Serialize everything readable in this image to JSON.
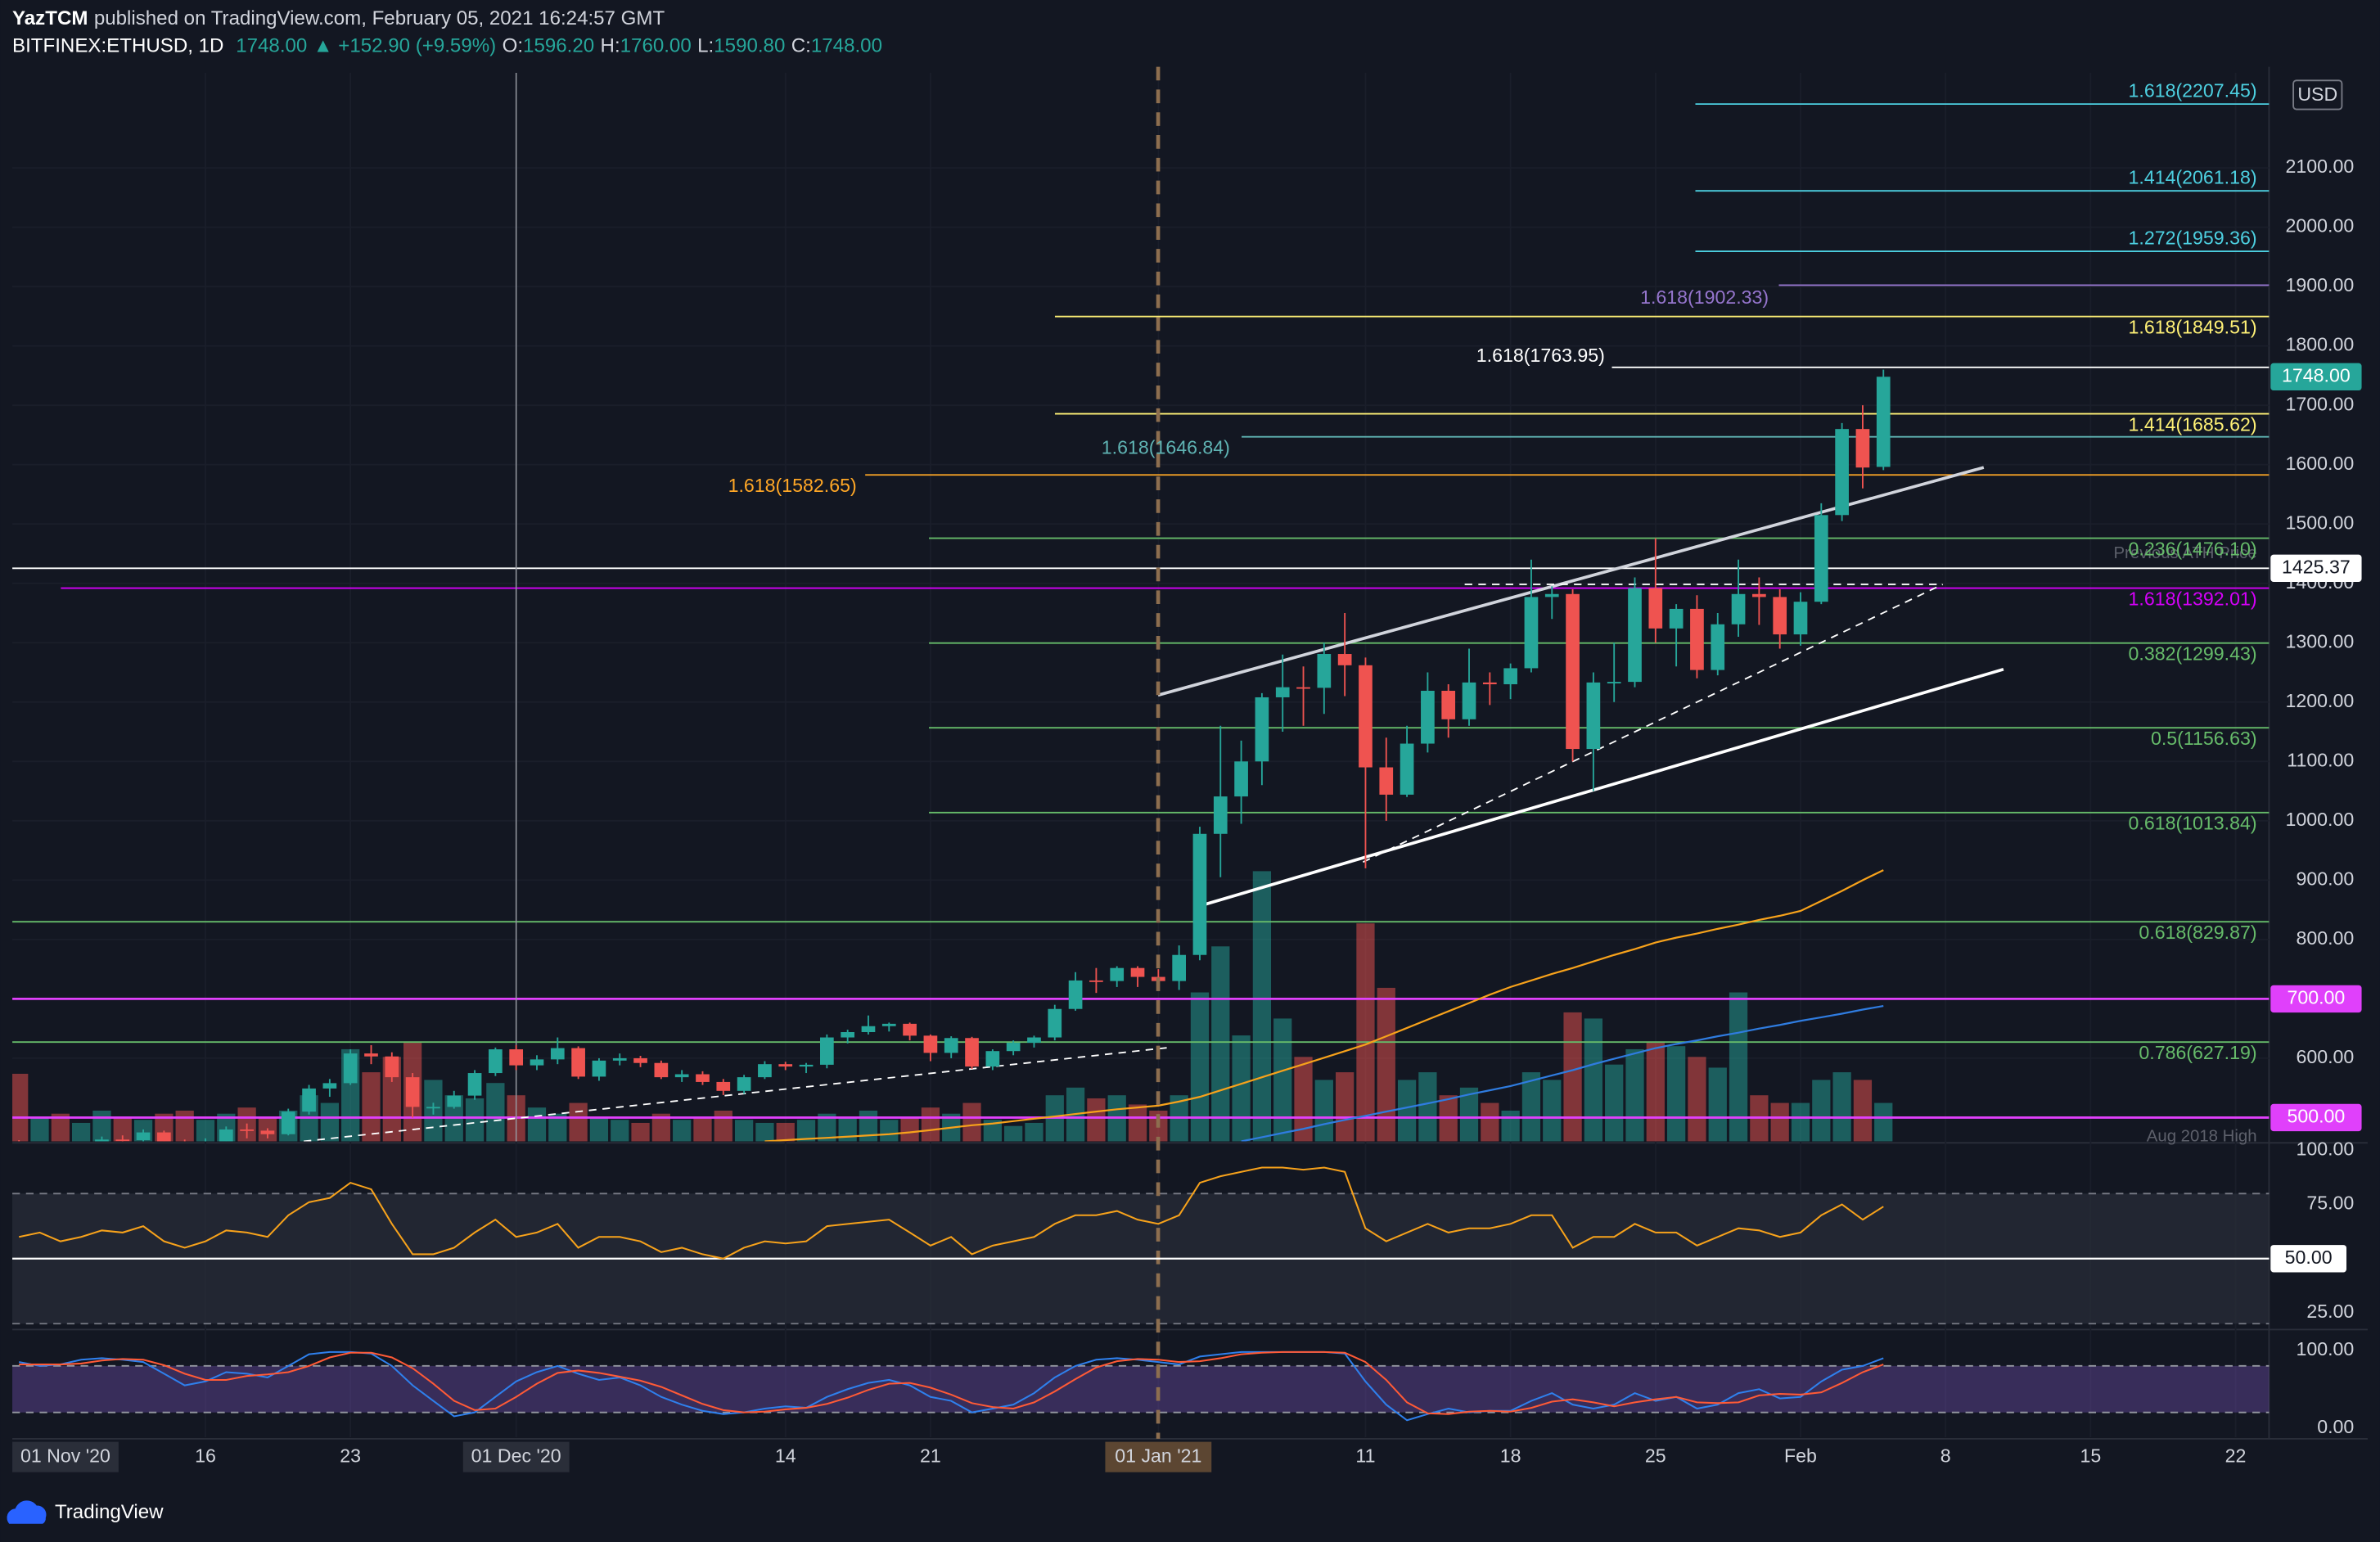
{
  "header": {
    "author": "YazTCM",
    "published": "published on TradingView.com, February 05, 2021 16:24:57 GMT",
    "symbol": "BITFINEX:ETHUSD, 1D",
    "last": "1748.00",
    "change": "▲ +152.90 (+9.59%)",
    "ohlc": [
      {
        "label": "O:",
        "value": "1596.20"
      },
      {
        "label": "H:",
        "value": "1760.00"
      },
      {
        "label": "L:",
        "value": "1590.80"
      },
      {
        "label": "C:",
        "value": "1748.00"
      }
    ]
  },
  "currency": "USD",
  "brand": "TradingView",
  "annotations": [
    "Previous ATH Price",
    "Aug 2018 High"
  ],
  "chart_data": {
    "type": "candlestick",
    "up_color": "#26a69a",
    "down_color": "#ef5350",
    "x": [
      "2020-11-07",
      "2020-11-08",
      "2020-11-09",
      "2020-11-10",
      "2020-11-11",
      "2020-11-12",
      "2020-11-13",
      "2020-11-14",
      "2020-11-15",
      "2020-11-16",
      "2020-11-17",
      "2020-11-18",
      "2020-11-19",
      "2020-11-20",
      "2020-11-21",
      "2020-11-22",
      "2020-11-23",
      "2020-11-24",
      "2020-11-25",
      "2020-11-26",
      "2020-11-27",
      "2020-11-28",
      "2020-11-29",
      "2020-11-30",
      "2020-12-01",
      "2020-12-02",
      "2020-12-03",
      "2020-12-04",
      "2020-12-05",
      "2020-12-06",
      "2020-12-07",
      "2020-12-08",
      "2020-12-09",
      "2020-12-10",
      "2020-12-11",
      "2020-12-12",
      "2020-12-13",
      "2020-12-14",
      "2020-12-15",
      "2020-12-16",
      "2020-12-17",
      "2020-12-18",
      "2020-12-19",
      "2020-12-20",
      "2020-12-21",
      "2020-12-22",
      "2020-12-23",
      "2020-12-24",
      "2020-12-25",
      "2020-12-26",
      "2020-12-27",
      "2020-12-28",
      "2020-12-29",
      "2020-12-30",
      "2020-12-31",
      "2021-01-01",
      "2021-01-02",
      "2021-01-03",
      "2021-01-04",
      "2021-01-05",
      "2021-01-06",
      "2021-01-07",
      "2021-01-08",
      "2021-01-09",
      "2021-01-10",
      "2021-01-11",
      "2021-01-12",
      "2021-01-13",
      "2021-01-14",
      "2021-01-15",
      "2021-01-16",
      "2021-01-17",
      "2021-01-18",
      "2021-01-19",
      "2021-01-20",
      "2021-01-21",
      "2021-01-22",
      "2021-01-23",
      "2021-01-24",
      "2021-01-25",
      "2021-01-26",
      "2021-01-27",
      "2021-01-28",
      "2021-01-29",
      "2021-01-30",
      "2021-01-31",
      "2021-02-01",
      "2021-02-02",
      "2021-02-03",
      "2021-02-04",
      "2021-02-05"
    ],
    "open": [
      455,
      435,
      454,
      444,
      451,
      463,
      462,
      475,
      460,
      448,
      460,
      480,
      478,
      472,
      510,
      549,
      558,
      608,
      603,
      568,
      518,
      518,
      537,
      575,
      615,
      588,
      598,
      617,
      569,
      596,
      600,
      592,
      568,
      573,
      560,
      545,
      568,
      590,
      586,
      589,
      635,
      644,
      654,
      658,
      638,
      609,
      634,
      586,
      612,
      626,
      635,
      683,
      731,
      730,
      752,
      737,
      730,
      774,
      978,
      1041,
      1100,
      1208,
      1225,
      1224,
      1281,
      1262,
      1090,
      1044,
      1130,
      1219,
      1171,
      1233,
      1230,
      1257,
      1377,
      1382,
      1121,
      1233,
      1234,
      1392,
      1324,
      1357,
      1254,
      1331,
      1382,
      1377,
      1314,
      1369,
      1515,
      1660,
      1596.2
    ],
    "high": [
      462,
      460,
      458,
      457,
      468,
      470,
      480,
      478,
      463,
      465,
      485,
      490,
      482,
      515,
      555,
      565,
      615,
      622,
      610,
      575,
      525,
      545,
      580,
      618,
      622,
      605,
      635,
      620,
      600,
      608,
      604,
      596,
      580,
      578,
      565,
      572,
      595,
      594,
      592,
      640,
      648,
      672,
      660,
      660,
      640,
      637,
      636,
      615,
      630,
      638,
      690,
      745,
      752,
      755,
      755,
      750,
      790,
      990,
      1160,
      1135,
      1215,
      1280,
      1260,
      1300,
      1350,
      1275,
      1140,
      1160,
      1250,
      1230,
      1290,
      1250,
      1265,
      1440,
      1395,
      1390,
      1250,
      1300,
      1410,
      1476,
      1365,
      1380,
      1350,
      1440,
      1410,
      1390,
      1385,
      1535,
      1670,
      1700,
      1760
    ],
    "low": [
      430,
      430,
      440,
      438,
      445,
      452,
      458,
      455,
      440,
      442,
      458,
      465,
      465,
      470,
      505,
      535,
      555,
      590,
      560,
      500,
      505,
      515,
      530,
      570,
      580,
      580,
      590,
      565,
      562,
      588,
      585,
      565,
      560,
      555,
      538,
      540,
      565,
      580,
      575,
      583,
      625,
      640,
      645,
      630,
      595,
      600,
      582,
      580,
      605,
      618,
      630,
      680,
      710,
      720,
      720,
      715,
      715,
      765,
      905,
      995,
      1060,
      1150,
      1160,
      1180,
      1210,
      920,
      1000,
      1040,
      1115,
      1140,
      1160,
      1195,
      1205,
      1250,
      1340,
      1100,
      1050,
      1200,
      1225,
      1300,
      1260,
      1240,
      1245,
      1310,
      1330,
      1290,
      1295,
      1365,
      1505,
      1560,
      1590.8
    ],
    "close": [
      435,
      454,
      444,
      451,
      463,
      462,
      475,
      460,
      448,
      460,
      480,
      478,
      472,
      510,
      549,
      558,
      608,
      603,
      568,
      518,
      518,
      537,
      575,
      615,
      588,
      598,
      617,
      569,
      596,
      600,
      592,
      568,
      573,
      560,
      545,
      568,
      590,
      586,
      589,
      635,
      644,
      654,
      658,
      638,
      609,
      634,
      586,
      612,
      626,
      635,
      683,
      731,
      730,
      752,
      737,
      730,
      774,
      978,
      1041,
      1100,
      1208,
      1225,
      1224,
      1281,
      1262,
      1090,
      1044,
      1130,
      1219,
      1171,
      1233,
      1230,
      1257,
      1377,
      1382,
      1121,
      1233,
      1234,
      1392,
      1324,
      1357,
      1254,
      1331,
      1382,
      1377,
      1314,
      1369,
      1515,
      1660,
      1595.1,
      1748
    ],
    "volume": [
      44,
      15,
      18,
      12,
      20,
      16,
      14,
      18,
      20,
      14,
      18,
      22,
      16,
      20,
      30,
      25,
      60,
      45,
      55,
      65,
      40,
      30,
      28,
      38,
      30,
      22,
      18,
      25,
      15,
      14,
      12,
      18,
      14,
      16,
      20,
      14,
      12,
      12,
      14,
      18,
      15,
      20,
      14,
      16,
      22,
      18,
      25,
      14,
      10,
      12,
      30,
      35,
      28,
      30,
      24,
      20,
      30,
      97,
      127,
      69,
      176,
      80,
      55,
      40,
      45,
      142,
      100,
      40,
      45,
      30,
      35,
      25,
      20,
      45,
      40,
      84,
      80,
      50,
      60,
      65,
      62,
      55,
      48,
      97,
      30,
      25,
      25,
      40,
      45,
      40,
      25
    ],
    "moving_averages": [
      {
        "color": "#f7a21b",
        "values": [
          null,
          null,
          null,
          null,
          null,
          null,
          null,
          null,
          null,
          null,
          null,
          null,
          null,
          null,
          null,
          null,
          null,
          null,
          null,
          null,
          null,
          null,
          null,
          null,
          null,
          null,
          null,
          null,
          null,
          null,
          null,
          null,
          null,
          null,
          null,
          null,
          460,
          462,
          464,
          466,
          468,
          470,
          472,
          475,
          479,
          483,
          487,
          490,
          494,
          498,
          502,
          506,
          510,
          514,
          517,
          520,
          527,
          535,
          546,
          557,
          568,
          579,
          590,
          601,
          612,
          623,
          637,
          651,
          665,
          679,
          693,
          707,
          720,
          731,
          742,
          752,
          763,
          774,
          784,
          795,
          803,
          810,
          818,
          825,
          833,
          840,
          848,
          865,
          882,
          900,
          917
        ]
      },
      {
        "color": "#2f7ce0",
        "values": [
          null,
          null,
          null,
          null,
          null,
          null,
          null,
          null,
          null,
          null,
          null,
          null,
          null,
          null,
          null,
          null,
          null,
          null,
          null,
          null,
          null,
          null,
          null,
          null,
          null,
          null,
          null,
          null,
          null,
          null,
          null,
          null,
          null,
          null,
          null,
          null,
          null,
          null,
          null,
          null,
          null,
          null,
          null,
          null,
          null,
          null,
          null,
          null,
          null,
          null,
          null,
          null,
          null,
          null,
          null,
          null,
          null,
          null,
          null,
          460,
          467,
          474,
          481,
          489,
          496,
          503,
          510,
          517,
          524,
          531,
          539,
          546,
          553,
          562,
          571,
          580,
          590,
          599,
          608,
          617,
          624,
          630,
          637,
          643,
          650,
          656,
          663,
          669,
          675,
          682,
          688
        ]
      }
    ],
    "ylim": [
      460,
      2260
    ],
    "yticks": [
      {
        "value": 600,
        "label": "600.00"
      },
      {
        "value": 700,
        "label": "700.00"
      },
      {
        "value": 800,
        "label": "800.00"
      },
      {
        "value": 900,
        "label": "900.00"
      },
      {
        "value": 1000,
        "label": "1000.00"
      },
      {
        "value": 1100,
        "label": "1100.00"
      },
      {
        "value": 1200,
        "label": "1200.00"
      },
      {
        "value": 1300,
        "label": "1300.00"
      },
      {
        "value": 1400,
        "label": "1400.00"
      },
      {
        "value": 1500,
        "label": "1500.00"
      },
      {
        "value": 1600,
        "label": "1600.00"
      },
      {
        "value": 1700,
        "label": "1700.00"
      },
      {
        "value": 1800,
        "label": "1800.00"
      },
      {
        "value": 1900,
        "label": "1900.00"
      },
      {
        "value": 2000,
        "label": "2000.00"
      },
      {
        "value": 2100,
        "label": "2100.00"
      }
    ],
    "xticks": [
      {
        "value": "2020-11-01",
        "label": "01 Nov '20"
      },
      {
        "value": "2020-11-16",
        "label": "16"
      },
      {
        "value": "2020-11-23",
        "label": "23"
      },
      {
        "value": "2020-12-01",
        "label": "01 Dec '20"
      },
      {
        "value": "2020-12-14",
        "label": "14"
      },
      {
        "value": "2020-12-21",
        "label": "21"
      },
      {
        "value": "2021-01-01",
        "label": "01 Jan '21"
      },
      {
        "value": "2021-01-11",
        "label": "11"
      },
      {
        "value": "2021-01-18",
        "label": "18"
      },
      {
        "value": "2021-01-25",
        "label": "25"
      },
      {
        "value": "2021-02-01",
        "label": "Feb"
      },
      {
        "value": "2021-02-08",
        "label": "8"
      },
      {
        "value": "2021-02-15",
        "label": "15"
      },
      {
        "value": "2021-02-22",
        "label": "22"
      }
    ],
    "levels": [
      {
        "label": "1.618(2207.45)",
        "value": 2207.45,
        "color": "#4dd0e1"
      },
      {
        "label": "1.414(2061.18)",
        "value": 2061.18,
        "color": "#4dd0e1"
      },
      {
        "label": "1.272(1959.36)",
        "value": 1959.36,
        "color": "#4dd0e1"
      },
      {
        "label": "1.618(1902.33)",
        "value": 1902.33,
        "color": "#9575cd"
      },
      {
        "label": "1.618(1849.51)",
        "value": 1849.51,
        "color": "#fff176"
      },
      {
        "label": "1.618(1763.95)",
        "value": 1763.95,
        "color": "#ffffff"
      },
      {
        "label": "1.414(1685.62)",
        "value": 1685.62,
        "color": "#fff176"
      },
      {
        "label": "1.618(1646.84)",
        "value": 1646.84,
        "color": "#5fb3b3"
      },
      {
        "label": "1.618(1582.65)",
        "value": 1582.65,
        "color": "#ffa726"
      },
      {
        "label": "0.236(1476.10)",
        "value": 1476.1,
        "color": "#66bb6a"
      },
      {
        "label": "1.618(1392.01)",
        "value": 1392.01,
        "color": "#d500f9"
      },
      {
        "label": "0.382(1299.43)",
        "value": 1299.43,
        "color": "#66bb6a"
      },
      {
        "label": "0.5(1156.63)",
        "value": 1156.63,
        "color": "#66bb6a"
      },
      {
        "label": "0.618(1013.84)",
        "value": 1013.84,
        "color": "#66bb6a"
      },
      {
        "label": "0.618(829.87)",
        "value": 829.87,
        "color": "#66bb6a"
      },
      {
        "label": "0.786(627.19)",
        "value": 627.19,
        "color": "#66bb6a"
      }
    ],
    "price_tags": [
      {
        "value": 1748,
        "label": "1748.00",
        "color": "#26a69a",
        "text_color": "#ffffff",
        "line": false
      },
      {
        "value": 1425.37,
        "label": "1425.37",
        "color": "#ffffff",
        "text_color": "#131722",
        "line": true
      },
      {
        "value": 700,
        "label": "700.00",
        "color": "#e040fb",
        "text_color": "#ffffff",
        "line": true
      },
      {
        "value": 500,
        "label": "500.00",
        "color": "#e040fb",
        "text_color": "#ffffff",
        "line": true
      }
    ],
    "rsi": {
      "color": "#f7a21b",
      "ylim": [
        18,
        102
      ],
      "band": [
        20,
        80
      ],
      "yticks": [
        {
          "value": 100,
          "label": "100.00"
        },
        {
          "value": 75,
          "label": "75.00"
        },
        {
          "value": 50,
          "label": "50.00"
        },
        {
          "value": 25,
          "label": "25.00"
        }
      ],
      "values": [
        60,
        62,
        58,
        60,
        63,
        62,
        65,
        58,
        55,
        58,
        63,
        62,
        60,
        70,
        76,
        78,
        85,
        82,
        66,
        52,
        52,
        55,
        62,
        68,
        60,
        62,
        66,
        55,
        60,
        60,
        58,
        53,
        55,
        52,
        50,
        55,
        58,
        57,
        58,
        65,
        66,
        67,
        68,
        62,
        56,
        60,
        52,
        56,
        58,
        60,
        66,
        70,
        70,
        72,
        68,
        66,
        70,
        85,
        88,
        90,
        92,
        92,
        91,
        92,
        90,
        64,
        58,
        62,
        66,
        62,
        64,
        64,
        66,
        70,
        70,
        55,
        60,
        60,
        66,
        62,
        62,
        56,
        60,
        64,
        63,
        60,
        62,
        70,
        75,
        68,
        74
      ]
    },
    "stoch": {
      "ylim": [
        -12,
        123
      ],
      "band": [
        20,
        80
      ],
      "yticks": [
        {
          "value": 100,
          "label": "100.00"
        },
        {
          "value": 0,
          "label": "0.00"
        }
      ],
      "k": {
        "color": "#2f80ed",
        "values": [
          85,
          80,
          82,
          88,
          90,
          88,
          85,
          70,
          55,
          60,
          72,
          70,
          65,
          80,
          95,
          98,
          98,
          96,
          80,
          55,
          35,
          15,
          20,
          40,
          60,
          72,
          80,
          70,
          62,
          65,
          55,
          40,
          30,
          22,
          18,
          20,
          25,
          28,
          26,
          40,
          50,
          58,
          62,
          55,
          40,
          35,
          20,
          25,
          30,
          45,
          65,
          80,
          88,
          90,
          88,
          85,
          82,
          92,
          95,
          98,
          98,
          98,
          98,
          98,
          96,
          60,
          30,
          10,
          18,
          25,
          20,
          22,
          22,
          35,
          45,
          30,
          25,
          30,
          45,
          35,
          40,
          25,
          30,
          45,
          50,
          38,
          40,
          60,
          75,
          80,
          90
        ]
      },
      "d": {
        "color": "#ff5a36",
        "values": [
          82,
          82,
          82,
          83,
          87,
          89,
          88,
          81,
          70,
          62,
          62,
          67,
          69,
          72,
          80,
          91,
          97,
          97,
          91,
          77,
          57,
          35,
          23,
          25,
          40,
          57,
          71,
          74,
          71,
          66,
          61,
          53,
          42,
          31,
          23,
          20,
          21,
          24,
          26,
          31,
          39,
          49,
          57,
          58,
          52,
          43,
          32,
          27,
          25,
          33,
          47,
          63,
          78,
          86,
          89,
          88,
          85,
          86,
          90,
          95,
          97,
          98,
          98,
          98,
          97,
          85,
          62,
          33,
          19,
          18,
          21,
          22,
          21,
          26,
          34,
          37,
          33,
          28,
          33,
          37,
          40,
          33,
          32,
          33,
          42,
          44,
          43,
          46,
          58,
          72,
          82
        ]
      }
    }
  }
}
